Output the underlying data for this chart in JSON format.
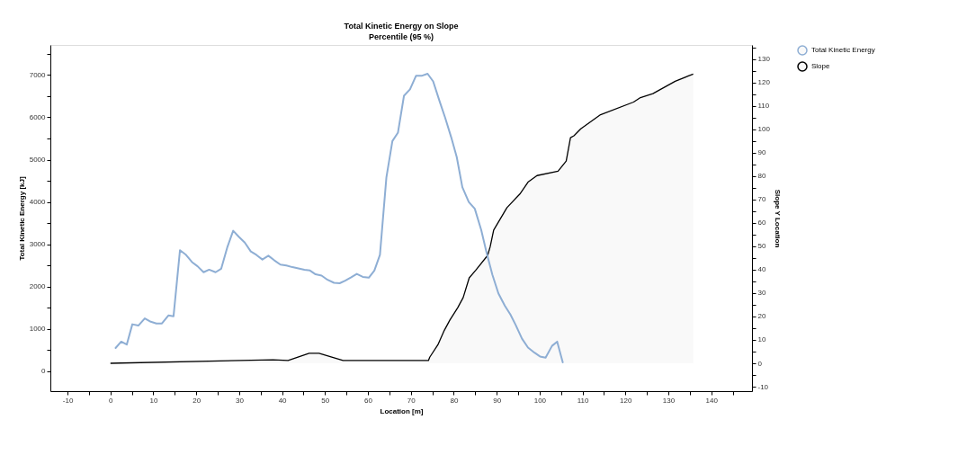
{
  "chart_data": {
    "type": "line",
    "title": "Total Kinetic Energy on Slope",
    "subtitle": "Percentile (95 %)",
    "xlabel": "Location [m]",
    "ylabel": "Total Kinetic Energy [kJ]",
    "y2label": "Slope Y Location",
    "legend": "right",
    "xlim": [
      -14,
      149.5
    ],
    "xticks": [
      -10,
      {
        "value": -5,
        "label": null
      },
      0,
      {
        "value": 5,
        "label": null
      },
      10,
      {
        "value": 15,
        "label": null
      },
      20,
      {
        "value": 25,
        "label": null
      },
      30,
      {
        "value": 35,
        "label": null
      },
      40,
      {
        "value": 45,
        "label": null
      },
      50,
      {
        "value": 55,
        "label": null
      },
      60,
      {
        "value": 65,
        "label": null
      },
      70,
      {
        "value": 75,
        "label": null
      },
      80,
      {
        "value": 85,
        "label": null
      },
      90,
      {
        "value": 95,
        "label": null
      },
      100,
      {
        "value": 105,
        "label": null
      },
      110,
      {
        "value": 115,
        "label": null
      },
      120,
      {
        "value": 125,
        "label": null
      },
      130,
      {
        "value": 135,
        "label": null
      },
      140,
      {
        "value": 145,
        "label": null
      }
    ],
    "ylim": [
      -470,
      7710
    ],
    "yticks": [
      0,
      {
        "value": 500,
        "label": null
      },
      1000,
      {
        "value": 1500,
        "label": null
      },
      2000,
      {
        "value": 2500,
        "label": null
      },
      3000,
      {
        "value": 3500,
        "label": null
      },
      4000,
      {
        "value": 4500,
        "label": null
      },
      5000,
      {
        "value": 5500,
        "label": null
      },
      6000,
      {
        "value": 6500,
        "label": null
      },
      7000,
      {
        "value": 7500,
        "label": null
      }
    ],
    "y2lim": [
      -11.9,
      136
    ],
    "y2ticks": [
      -10,
      {
        "value": -5,
        "label": null
      },
      0,
      {
        "value": 5,
        "label": null
      },
      10,
      {
        "value": 15,
        "label": null
      },
      20,
      {
        "value": 25,
        "label": null
      },
      30,
      {
        "value": 35,
        "label": null
      },
      40,
      {
        "value": 45,
        "label": null
      },
      50,
      {
        "value": 55,
        "label": null
      },
      60,
      {
        "value": 65,
        "label": null
      },
      70,
      {
        "value": 75,
        "label": null
      },
      80,
      {
        "value": 85,
        "label": null
      },
      90,
      {
        "value": 95,
        "label": null
      },
      100,
      {
        "value": 105,
        "label": null
      },
      110,
      {
        "value": 115,
        "label": null
      },
      120,
      {
        "value": 125,
        "label": null
      },
      130,
      {
        "value": 135,
        "label": null
      }
    ],
    "series": [
      {
        "name": "Total Kinetic Energy",
        "color": "#8eaed4",
        "x": [
          1.2,
          2.5,
          3.8,
          5.1,
          6.5,
          8.0,
          9.4,
          10.7,
          12.0,
          13.5,
          14.7,
          16.2,
          17.5,
          19.0,
          20.3,
          21.7,
          23.0,
          24.5,
          25.8,
          27.2,
          28.6,
          29.9,
          31.3,
          32.7,
          34.0,
          35.4,
          36.8,
          38.2,
          39.6,
          41.0,
          42.4,
          43.8,
          45.2,
          46.5,
          47.8,
          49.2,
          50.6,
          52.1,
          53.4,
          54.7,
          56.1,
          57.4,
          58.8,
          60.2,
          61.5,
          62.8,
          64.3,
          65.7,
          67.0,
          68.4,
          69.8,
          71.2,
          72.5,
          73.9,
          75.2,
          76.7,
          78.0,
          79.4,
          80.7,
          82.0,
          83.5,
          84.9,
          86.4,
          87.7,
          89.0,
          90.4,
          91.9,
          93.2,
          94.4,
          95.9,
          97.3,
          98.8,
          100.1,
          101.4,
          102.9,
          104.1,
          105.4
        ],
        "values": [
          550,
          700,
          630,
          1110,
          1080,
          1250,
          1170,
          1130,
          1130,
          1320,
          1300,
          2860,
          2760,
          2580,
          2480,
          2340,
          2400,
          2340,
          2420,
          2920,
          3320,
          3180,
          3040,
          2830,
          2750,
          2640,
          2730,
          2620,
          2520,
          2500,
          2460,
          2430,
          2400,
          2380,
          2290,
          2260,
          2160,
          2090,
          2080,
          2140,
          2220,
          2300,
          2230,
          2210,
          2380,
          2750,
          4580,
          5440,
          5640,
          6510,
          6660,
          6980,
          6980,
          7030,
          6850,
          6380,
          5990,
          5530,
          5060,
          4350,
          4000,
          3840,
          3340,
          2780,
          2280,
          1840,
          1550,
          1340,
          1100,
          770,
          560,
          440,
          350,
          320,
          600,
          700,
          210
        ]
      },
      {
        "name": "Slope",
        "type": "area",
        "axis": "y2",
        "color": "#000000",
        "x": [
          0,
          37.9,
          41.4,
          46.3,
          48.6,
          54.2,
          74.1,
          74.4,
          76.3,
          77.8,
          79.1,
          80.9,
          82.2,
          83.6,
          85.1,
          87.9,
          88.5,
          89.3,
          92.4,
          95.4,
          97.3,
          99.4,
          104.3,
          106.2,
          107.2,
          108.0,
          109.6,
          114.2,
          121.9,
          123.5,
          126.4,
          131.6,
          134.7,
          135.8
        ],
        "values": [
          0,
          1.5,
          1.2,
          4.3,
          4.3,
          1.2,
          1.2,
          2.6,
          7.9,
          14.1,
          18.5,
          23.7,
          28.1,
          36.5,
          39.7,
          46.1,
          49.9,
          56.9,
          66.5,
          72.3,
          77.4,
          80.2,
          82.1,
          86.4,
          96.4,
          97.2,
          100.2,
          106.2,
          111.6,
          113.5,
          115.2,
          120.5,
          122.8,
          123.6
        ]
      }
    ]
  }
}
